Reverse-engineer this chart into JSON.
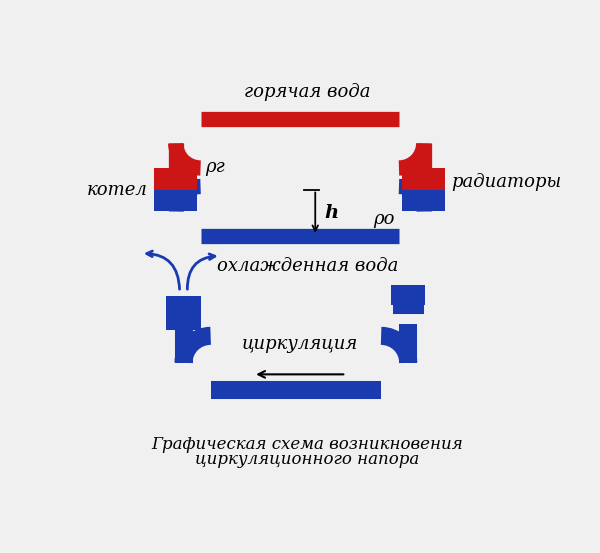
{
  "bg_color": "#f0f0f0",
  "white": "#ffffff",
  "red_color": "#cc1515",
  "blue_color": "#1a3ab0",
  "black": "#000000",
  "text_color": "#111111",
  "pipe_lw": 11,
  "title_line1": "Графическая схема возникновения",
  "title_line2": "циркуляционного напора",
  "label_hot": "горячая вода",
  "label_cold": "охлажденная вода",
  "label_boiler": "котел",
  "label_radiator": "радиаторы",
  "label_rho_g": "ρг",
  "label_rho_o": "ρо",
  "label_h": "h",
  "label_circ": "циркуляция"
}
